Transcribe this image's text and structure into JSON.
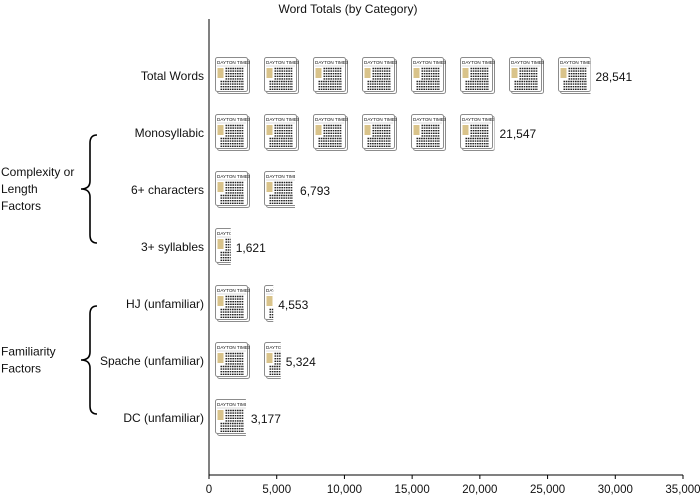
{
  "chart_data": {
    "type": "bar",
    "title": "Word Totals (by Category)",
    "icon": "newspaper-icon",
    "icon_header_text": "DAYTON TIMES",
    "unit_per_icon": 3600,
    "categories": [
      "Total Words",
      "Monosyllabic",
      "6+ characters",
      "3+ syllables",
      "HJ (unfamiliar)",
      "Spache (unfamiliar)",
      "DC (unfamiliar)"
    ],
    "values": [
      28541,
      21547,
      6793,
      1621,
      4553,
      5324,
      3177
    ],
    "value_labels": [
      "28,541",
      "21,547",
      "6,793",
      "1,621",
      "4,553",
      "5,324",
      "3,177"
    ],
    "groups": [
      {
        "label_lines": [
          "Complexity or",
          "Length",
          "Factors"
        ],
        "categories": [
          "Monosyllabic",
          "6+ characters",
          "3+ syllables"
        ]
      },
      {
        "label_lines": [
          "Familiarity",
          "Factors"
        ],
        "categories": [
          "HJ (unfamiliar)",
          "Spache (unfamiliar)",
          "DC (unfamiliar)"
        ]
      }
    ],
    "xlim": [
      0,
      35000
    ],
    "x_ticks": [
      0,
      5000,
      10000,
      15000,
      20000,
      25000,
      30000,
      35000
    ],
    "x_tick_labels": [
      "0",
      "5,000",
      "10,000",
      "15,000",
      "20,000",
      "25,000",
      "30,000",
      "35,000"
    ],
    "grid": false,
    "colors": {
      "icon_border": "#8c8c8c",
      "icon_photo": "#d9c38a",
      "icon_text": "#333333",
      "axis": "#000000"
    }
  }
}
